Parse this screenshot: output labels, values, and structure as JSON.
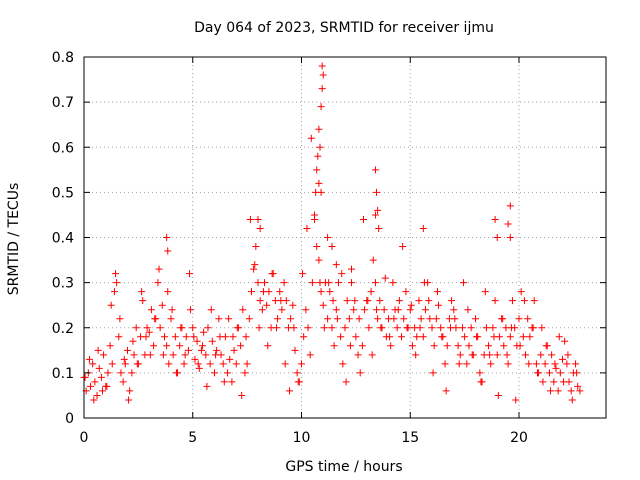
{
  "chart_data": {
    "type": "scatter",
    "title": "Day 064 of 2023, SRMTID for receiver ijmu",
    "xlabel": "GPS time / hours",
    "ylabel": "SRMTID / TECUs",
    "xlim": [
      0,
      24
    ],
    "ylim": [
      0,
      0.8
    ],
    "xticks": [
      0,
      5,
      10,
      15,
      20
    ],
    "xtick_labels": [
      "0",
      "5",
      "10",
      "15",
      "20"
    ],
    "yticks": [
      0,
      0.1,
      0.2,
      0.3,
      0.4,
      0.5,
      0.6,
      0.7,
      0.8
    ],
    "ytick_labels": [
      "0",
      "0.1",
      "0.2",
      "0.3",
      "0.4",
      "0.5",
      "0.6",
      "0.7",
      "0.8"
    ],
    "grid": true,
    "marker": "+",
    "color": "#ff0000",
    "series": [
      {
        "name": "SRMTID",
        "x": [
          0.0,
          0.1,
          0.2,
          0.3,
          0.4,
          0.5,
          0.6,
          0.7,
          0.8,
          0.9,
          1.0,
          1.1,
          1.2,
          1.3,
          1.4,
          1.5,
          1.6,
          1.7,
          1.8,
          1.9,
          2.0,
          2.1,
          2.2,
          2.3,
          2.4,
          2.5,
          2.6,
          2.7,
          2.8,
          2.9,
          3.0,
          3.1,
          3.2,
          3.3,
          3.4,
          3.5,
          3.6,
          3.7,
          3.8,
          3.9,
          4.0,
          4.1,
          4.2,
          4.3,
          4.4,
          4.5,
          4.6,
          4.7,
          4.8,
          4.9,
          5.0,
          5.1,
          5.2,
          5.3,
          5.4,
          5.5,
          5.6,
          5.7,
          5.8,
          5.9,
          6.0,
          6.1,
          6.2,
          6.3,
          6.4,
          6.5,
          6.6,
          6.7,
          6.8,
          6.9,
          7.0,
          7.1,
          7.2,
          7.3,
          7.4,
          7.5,
          7.6,
          7.7,
          7.8,
          7.9,
          8.0,
          8.1,
          8.2,
          8.3,
          8.4,
          8.5,
          8.6,
          8.7,
          8.8,
          8.9,
          9.0,
          9.1,
          9.2,
          9.3,
          9.4,
          9.5,
          9.6,
          9.7,
          9.8,
          9.9,
          10.0,
          10.1,
          10.2,
          10.3,
          10.4,
          10.5,
          10.6,
          10.7,
          10.8,
          10.9,
          11.0,
          11.1,
          11.2,
          11.3,
          11.4,
          11.5,
          11.6,
          11.7,
          11.8,
          11.9,
          12.0,
          12.1,
          12.2,
          12.3,
          12.4,
          12.5,
          12.6,
          12.7,
          12.8,
          12.9,
          13.0,
          13.1,
          13.2,
          13.3,
          13.4,
          13.5,
          13.6,
          13.7,
          13.8,
          13.9,
          14.0,
          14.1,
          14.2,
          14.3,
          14.4,
          14.5,
          14.6,
          14.7,
          14.8,
          14.9,
          15.0,
          15.1,
          15.2,
          15.3,
          15.4,
          15.5,
          15.6,
          15.7,
          15.8,
          15.9,
          16.0,
          16.1,
          16.2,
          16.3,
          16.4,
          16.5,
          16.6,
          16.7,
          16.8,
          16.9,
          17.0,
          17.1,
          17.2,
          17.3,
          17.4,
          17.5,
          17.6,
          17.7,
          17.8,
          17.9,
          18.0,
          18.1,
          18.2,
          18.3,
          18.4,
          18.5,
          18.6,
          18.7,
          18.8,
          18.9,
          19.0,
          19.1,
          19.2,
          19.3,
          19.4,
          19.5,
          19.6,
          19.7,
          19.8,
          19.9,
          20.0,
          20.1,
          20.2,
          20.3,
          20.4,
          20.5,
          20.6,
          20.7,
          20.8,
          20.9,
          21.0,
          21.1,
          21.2,
          21.3,
          21.4,
          21.5,
          21.6,
          21.7,
          21.8,
          21.9,
          22.0,
          22.1,
          22.2,
          22.3,
          22.4,
          22.5,
          22.6,
          22.7,
          22.8,
          0.05,
          0.25,
          0.45,
          0.65,
          0.85,
          1.05,
          1.25,
          1.45,
          1.65,
          1.85,
          2.05,
          2.25,
          2.45,
          2.65,
          2.85,
          3.05,
          3.25,
          3.45,
          3.65,
          3.85,
          4.05,
          4.25,
          4.45,
          4.65,
          4.85,
          5.05,
          5.25,
          5.45,
          5.65,
          5.85,
          6.05,
          6.25,
          6.45,
          6.65,
          6.85,
          7.05,
          7.25,
          7.45,
          7.65,
          7.85,
          8.05,
          8.25,
          8.45,
          8.65,
          8.85,
          9.05,
          9.25,
          9.45,
          9.65,
          9.85,
          10.05,
          10.25,
          10.45,
          10.65,
          10.85,
          11.05,
          11.25,
          11.45,
          11.65,
          11.85,
          12.05,
          12.25,
          12.45,
          12.65,
          12.85,
          13.05,
          13.25,
          13.45,
          13.65,
          13.85,
          14.05,
          14.25,
          14.45,
          14.65,
          14.85,
          15.05,
          15.25,
          15.45,
          15.65,
          15.85,
          16.05,
          16.25,
          16.45,
          16.65,
          16.85,
          17.05,
          17.25,
          17.45,
          17.65,
          17.85,
          18.05,
          18.25,
          18.45,
          18.65,
          18.85,
          19.05,
          19.25,
          19.45,
          19.65,
          19.85,
          20.05,
          20.25,
          20.45,
          20.65,
          20.85,
          21.05,
          21.25,
          21.45,
          21.65,
          21.85,
          22.05,
          22.25,
          22.45,
          22.65,
          10.7,
          10.75,
          10.8,
          10.85,
          10.9,
          10.95,
          10.95,
          11.0,
          10.9,
          10.8,
          10.6,
          11.2,
          11.4,
          13.4,
          13.45,
          13.5,
          13.4,
          13.55,
          19.6,
          19.5,
          19.6,
          18.9,
          19.0,
          8.0,
          8.1,
          3.8,
          3.85,
          15.6,
          11.6,
          12.3
        ],
        "y": [
          0.09,
          0.06,
          0.1,
          0.07,
          0.12,
          0.08,
          0.05,
          0.11,
          0.09,
          0.14,
          0.07,
          0.1,
          0.16,
          0.12,
          0.28,
          0.3,
          0.18,
          0.1,
          0.08,
          0.12,
          0.15,
          0.06,
          0.1,
          0.14,
          0.2,
          0.12,
          0.18,
          0.26,
          0.14,
          0.2,
          0.19,
          0.24,
          0.16,
          0.22,
          0.3,
          0.2,
          0.25,
          0.18,
          0.16,
          0.12,
          0.22,
          0.14,
          0.18,
          0.1,
          0.16,
          0.2,
          0.12,
          0.18,
          0.15,
          0.24,
          0.2,
          0.13,
          0.17,
          0.11,
          0.15,
          0.19,
          0.14,
          0.2,
          0.12,
          0.17,
          0.1,
          0.15,
          0.22,
          0.14,
          0.12,
          0.18,
          0.1,
          0.13,
          0.08,
          0.15,
          0.12,
          0.2,
          0.16,
          0.24,
          0.1,
          0.12,
          0.22,
          0.28,
          0.33,
          0.38,
          0.3,
          0.26,
          0.24,
          0.3,
          0.25,
          0.28,
          0.2,
          0.32,
          0.26,
          0.22,
          0.28,
          0.24,
          0.3,
          0.26,
          0.2,
          0.22,
          0.25,
          0.15,
          0.1,
          0.08,
          0.12,
          0.18,
          0.24,
          0.2,
          0.14,
          0.3,
          0.44,
          0.38,
          0.35,
          0.28,
          0.25,
          0.3,
          0.22,
          0.28,
          0.2,
          0.16,
          0.24,
          0.3,
          0.18,
          0.12,
          0.2,
          0.26,
          0.22,
          0.3,
          0.24,
          0.18,
          0.14,
          0.1,
          0.16,
          0.24,
          0.26,
          0.2,
          0.28,
          0.35,
          0.3,
          0.22,
          0.26,
          0.2,
          0.24,
          0.18,
          0.22,
          0.16,
          0.3,
          0.24,
          0.2,
          0.26,
          0.18,
          0.22,
          0.28,
          0.2,
          0.24,
          0.16,
          0.2,
          0.18,
          0.26,
          0.22,
          0.18,
          0.24,
          0.3,
          0.22,
          0.2,
          0.16,
          0.22,
          0.25,
          0.2,
          0.18,
          0.12,
          0.16,
          0.22,
          0.26,
          0.24,
          0.2,
          0.16,
          0.14,
          0.2,
          0.18,
          0.12,
          0.16,
          0.2,
          0.14,
          0.22,
          0.18,
          0.1,
          0.08,
          0.14,
          0.2,
          0.16,
          0.12,
          0.2,
          0.26,
          0.14,
          0.18,
          0.22,
          0.16,
          0.2,
          0.12,
          0.18,
          0.26,
          0.2,
          0.16,
          0.22,
          0.28,
          0.18,
          0.14,
          0.22,
          0.18,
          0.2,
          0.26,
          0.12,
          0.1,
          0.14,
          0.08,
          0.12,
          0.16,
          0.1,
          0.14,
          0.08,
          0.11,
          0.06,
          0.1,
          0.13,
          0.17,
          0.12,
          0.08,
          0.06,
          0.1,
          0.12,
          0.07,
          0.06,
          0.09,
          0.13,
          0.04,
          0.15,
          0.06,
          0.07,
          0.25,
          0.32,
          0.22,
          0.13,
          0.04,
          0.17,
          0.12,
          0.28,
          0.18,
          0.14,
          0.22,
          0.33,
          0.14,
          0.28,
          0.24,
          0.1,
          0.2,
          0.14,
          0.32,
          0.18,
          0.12,
          0.16,
          0.07,
          0.24,
          0.14,
          0.18,
          0.08,
          0.22,
          0.18,
          0.2,
          0.05,
          0.18,
          0.44,
          0.34,
          0.2,
          0.28,
          0.16,
          0.32,
          0.2,
          0.26,
          0.12,
          0.06,
          0.2,
          0.08,
          0.32,
          0.42,
          0.62,
          0.5,
          0.3,
          0.2,
          0.3,
          0.26,
          0.22,
          0.32,
          0.08,
          0.16,
          0.26,
          0.22,
          0.44,
          0.26,
          0.14,
          0.24,
          0.2,
          0.31,
          0.18,
          0.22,
          0.24,
          0.38,
          0.2,
          0.25,
          0.14,
          0.2,
          0.3,
          0.26,
          0.1,
          0.28,
          0.18,
          0.06,
          0.2,
          0.22,
          0.12,
          0.3,
          0.24,
          0.14,
          0.18,
          0.08,
          0.28,
          0.14,
          0.18,
          0.05,
          0.22,
          0.14,
          0.2,
          0.04,
          0.16,
          0.26,
          0.12,
          0.2,
          0.1,
          0.2,
          0.16,
          0.06,
          0.12,
          0.18,
          0.08,
          0.14,
          0.04,
          0.1,
          0.55,
          0.58,
          0.64,
          0.6,
          0.69,
          0.73,
          0.78,
          0.76,
          0.5,
          0.52,
          0.45,
          0.4,
          0.38,
          0.55,
          0.5,
          0.46,
          0.45,
          0.42,
          0.47,
          0.43,
          0.4,
          0.44,
          0.4,
          0.44,
          0.42,
          0.4,
          0.37,
          0.42,
          0.34,
          0.33
        ]
      }
    ]
  }
}
